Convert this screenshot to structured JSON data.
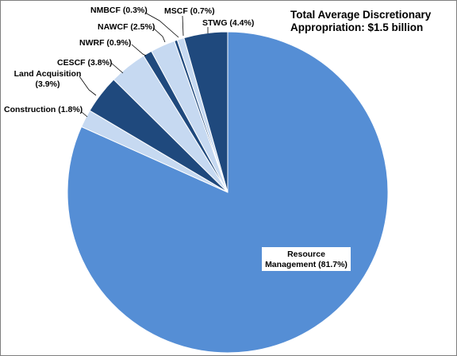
{
  "chart_data": {
    "type": "pie",
    "title_lines": [
      "Total Average Discretionary",
      "Appropriation: $1.5 billion"
    ],
    "slices": [
      {
        "name": "Resource Management",
        "value": 81.7,
        "label_lines": [
          "Resource",
          "Management (81.7%)"
        ],
        "color": "#558ed5"
      },
      {
        "name": "Construction",
        "value": 1.8,
        "label_lines": [
          "Construction (1.8%)"
        ],
        "color": "#c6d9f1"
      },
      {
        "name": "Land Acquisition",
        "value": 3.9,
        "label_lines": [
          "Land Acquisition",
          "(3.9%)"
        ],
        "color": "#1f497d"
      },
      {
        "name": "CESCF",
        "value": 3.8,
        "label_lines": [
          "CESCF (3.8%)"
        ],
        "color": "#c6d9f1"
      },
      {
        "name": "NWRF",
        "value": 0.9,
        "label_lines": [
          "NWRF (0.9%)"
        ],
        "color": "#1f497d"
      },
      {
        "name": "NAWCF",
        "value": 2.5,
        "label_lines": [
          "NAWCF (2.5%)"
        ],
        "color": "#c6d9f1"
      },
      {
        "name": "NMBCF",
        "value": 0.3,
        "label_lines": [
          "NMBCF (0.3%)"
        ],
        "color": "#1f497d"
      },
      {
        "name": "MSCF",
        "value": 0.7,
        "label_lines": [
          "MSCF (0.7%)"
        ],
        "color": "#c6d9f1"
      },
      {
        "name": "STWG",
        "value": 4.4,
        "label_lines": [
          "STWG (4.4%)"
        ],
        "color": "#1f497d"
      }
    ],
    "start": "12 o'clock",
    "direction": "clockwise"
  }
}
